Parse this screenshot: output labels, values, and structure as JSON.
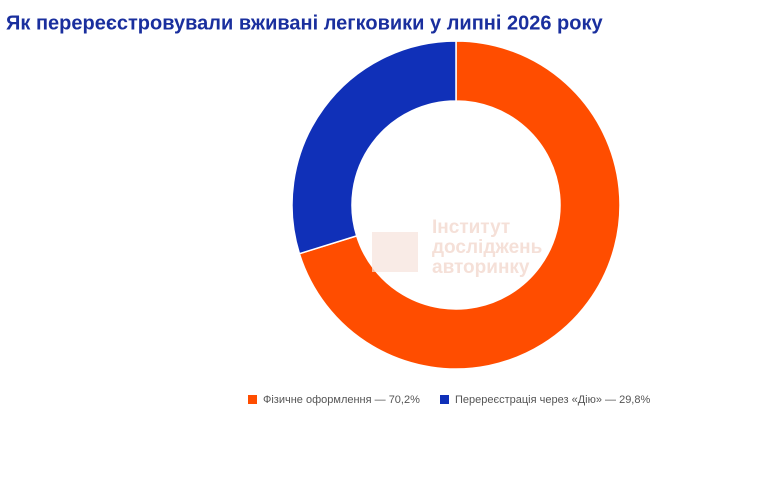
{
  "chart_data": {
    "type": "donut",
    "title": "Як перереєстровували вживані легковики у липні 2026 року",
    "categories": [
      "Фізичне оформлення — 70,2%",
      "Перереєстрація через «Дію» — 29,8%"
    ],
    "values": [
      70.2,
      29.8
    ],
    "colors": [
      "#ff4d00",
      "#1030b8"
    ],
    "watermark": [
      "Інститут",
      "досліджень",
      "авторинку"
    ]
  }
}
